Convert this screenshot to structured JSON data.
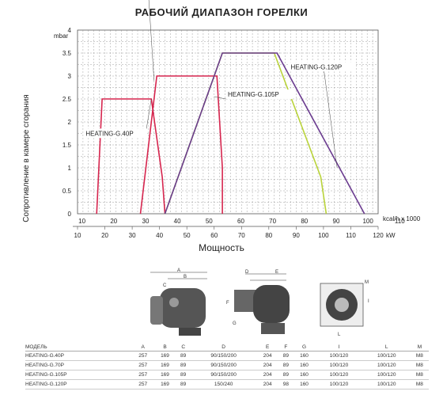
{
  "title": "РАБОЧИЙ ДИАПАЗОН ГОРЕЛКИ",
  "chart_data": {
    "type": "area",
    "title": "РАБОЧИЙ ДИАПАЗОН ГОРЕЛКИ",
    "xlabel": "Мощность",
    "ylabel": "Сопротивление в камере сгорания",
    "y_unit": "mbar",
    "x_unit_top": "kcal/h x 1000",
    "x_unit_bottom": "kW",
    "ylim": [
      0,
      4
    ],
    "kcal_lim": [
      0,
      110
    ],
    "kw_lim": [
      10,
      120
    ],
    "grid": true,
    "y_ticks": [
      "0",
      "0.5",
      "1",
      "1.5",
      "2",
      "2.5",
      "3",
      "3.5",
      "4"
    ],
    "kcal_ticks": [
      "10",
      "20",
      "30",
      "40",
      "50",
      "60",
      "70",
      "80",
      "90",
      "100",
      "110"
    ],
    "kw_ticks": [
      "10",
      "20",
      "30",
      "40",
      "50",
      "60",
      "70",
      "80",
      "90",
      "100",
      "110",
      "120"
    ],
    "series": [
      {
        "name": "HEATING-G.40P",
        "color": "#d6254e",
        "label_kw": [
          13,
          1.7
        ],
        "leader_to_kw": [
          37,
          2.5
        ],
        "points_kw": [
          [
            17,
            0
          ],
          [
            19,
            2.5
          ],
          [
            37,
            2.5
          ],
          [
            41,
            0.8
          ],
          [
            42,
            0
          ]
        ]
      },
      {
        "name": "HEATING-G.70P",
        "color": "#d6254e",
        "label_kw": [
          13,
          5.5
        ],
        "leader_to_kw": [
          38,
          2.9
        ],
        "points_kw": [
          [
            33,
            0
          ],
          [
            39,
            3.0
          ],
          [
            61,
            3.0
          ],
          [
            63,
            1.0
          ],
          [
            63,
            0
          ]
        ]
      },
      {
        "name": "HEATING-G.105P",
        "color": "#b9d33a",
        "label_kw": [
          65,
          2.55
        ],
        "leader_to_kw": [
          60,
          2.55
        ],
        "points_kw": [
          [
            42,
            0
          ],
          [
            63,
            3.5
          ],
          [
            82,
            3.5
          ],
          [
            99,
            0.8
          ],
          [
            101,
            0
          ]
        ]
      },
      {
        "name": "HEATING-G.120P",
        "color": "#6a3b8f",
        "label_kw": [
          88,
          3.15
        ],
        "leader_to_kw": [
          105,
          1.0
        ],
        "points_kw": [
          [
            42,
            0
          ],
          [
            63,
            3.5
          ],
          [
            83,
            3.5
          ],
          [
            115,
            0
          ]
        ]
      }
    ]
  },
  "table": {
    "headers": [
      "МОДЕЛЬ",
      "A",
      "B",
      "C",
      "D",
      "E",
      "F",
      "G",
      "I",
      "L",
      "M"
    ],
    "rows": [
      [
        "HEATING-G.40P",
        "257",
        "169",
        "89",
        "90/150/200",
        "204",
        "89",
        "160",
        "100/120",
        "100/120",
        "M8"
      ],
      [
        "HEATING-G.70P",
        "257",
        "169",
        "89",
        "90/150/200",
        "204",
        "89",
        "160",
        "100/120",
        "100/120",
        "M8"
      ],
      [
        "HEATING-G.105P",
        "257",
        "169",
        "89",
        "90/150/200",
        "204",
        "89",
        "160",
        "100/120",
        "100/120",
        "M8"
      ],
      [
        "HEATING-G.120P",
        "257",
        "169",
        "89",
        "150/240",
        "204",
        "98",
        "160",
        "100/120",
        "100/120",
        "M8"
      ]
    ]
  },
  "drawing_labels": [
    "A",
    "B",
    "C",
    "D",
    "E",
    "F",
    "G",
    "I",
    "L",
    "M"
  ]
}
